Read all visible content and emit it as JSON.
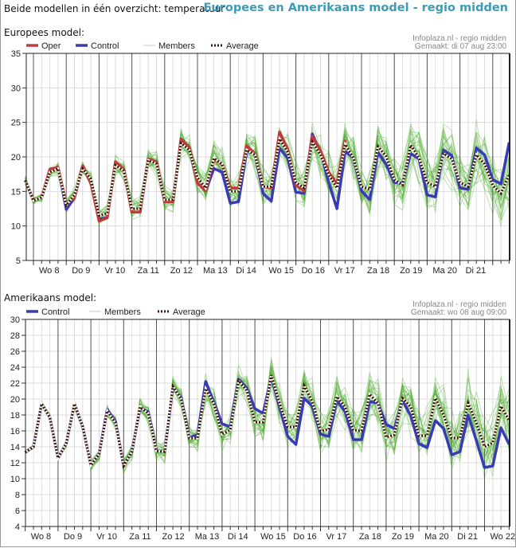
{
  "header": {
    "left_title": "Beide modellen in één overzicht: temperatuur",
    "right_title": "Europees en Amerikaans model - regio midden"
  },
  "chart_data": [
    {
      "type": "line",
      "title": "Europees model:",
      "source": "Infoplaza.nl - regio midden",
      "made": "Gemaakt: di 07 aug 23:00",
      "ylim": [
        5,
        35
      ],
      "yticks": [
        5,
        10,
        15,
        20,
        25,
        30,
        35
      ],
      "step_hours": 6,
      "day_labels": [
        "Wo 8",
        "Do 9",
        "Vr 10",
        "Za 11",
        "Zo 12",
        "Ma 13",
        "Di 14",
        "Wo 15",
        "Do 16",
        "Vr 17",
        "Za 18",
        "Zo 19",
        "Ma 20",
        "Di 21"
      ],
      "legend": [
        "Oper",
        "Control",
        "Members",
        "Average"
      ],
      "series": [
        {
          "name": "Oper",
          "color": "#c43a3a",
          "values": [
            16.6,
            13.7,
            14.1,
            18.2,
            18.5,
            13.2,
            14.1,
            18.7,
            16.2,
            10.7,
            11.2,
            19.3,
            18.2,
            12,
            12,
            19.7,
            19.3,
            13.5,
            13.5,
            22.6,
            21.4,
            16.2,
            15.1,
            19.7,
            18.9,
            15.5,
            15.5,
            21.6,
            20.5,
            15.7,
            15.5,
            23.6,
            21.1,
            15.9,
            15.1,
            23,
            20.9,
            17.8,
            16.1,
            22.5
          ]
        },
        {
          "name": "Control",
          "color": "#3a3ab4",
          "values": [
            16.6,
            13.7,
            14.1,
            18.2,
            18.5,
            12.4,
            14.1,
            18.7,
            16.2,
            11,
            11.2,
            19.3,
            18.2,
            12,
            12,
            19.7,
            19.3,
            13.5,
            13.5,
            22.6,
            21.4,
            16.2,
            15.1,
            18.3,
            17.8,
            13.3,
            13.5,
            20.8,
            20.5,
            14.7,
            13.6,
            21.3,
            19.8,
            14.9,
            14.7,
            23.3,
            20.7,
            16.3,
            12.5,
            20.8,
            19.9,
            15.1,
            13.8,
            20.7,
            18.9,
            16.3,
            16.2,
            20.5,
            19.7,
            14.5,
            14.2,
            21,
            20.2,
            15.5,
            15.3,
            21.3,
            20.3,
            16.7,
            16.1,
            22.1
          ]
        },
        {
          "name": "Average",
          "color": "#3d1500",
          "values": [
            16.6,
            13.7,
            14.1,
            17.8,
            18.3,
            13,
            14.5,
            18.3,
            16.8,
            11.5,
            11.8,
            18.8,
            18,
            12.5,
            12.5,
            19.5,
            19,
            13.8,
            13.8,
            22,
            21,
            17,
            15.5,
            19.8,
            19,
            15,
            15,
            21,
            20.3,
            15.7,
            15.7,
            22.6,
            20.7,
            16.3,
            15.5,
            22.2,
            20.3,
            17.4,
            15.5,
            21.8,
            19.9,
            15.7,
            15.3,
            21.5,
            20.1,
            16.7,
            15.9,
            21.7,
            19.9,
            16.3,
            15.7,
            20.5,
            19.7,
            16.3,
            15.7,
            20.3,
            19,
            15.9,
            14.7,
            17.4
          ]
        }
      ],
      "members": {
        "color": "#4aa82a",
        "spread_start": 0.6,
        "spread_end": 4.2
      }
    },
    {
      "type": "line",
      "title": "Amerikaans model:",
      "source": "Infoplaza.nl - regio midden",
      "made": "Gemaakt: wo 08 aug 09:00",
      "ylim": [
        4,
        30
      ],
      "yticks": [
        4,
        6,
        8,
        10,
        12,
        14,
        16,
        18,
        20,
        22,
        24,
        26,
        28,
        30
      ],
      "step_hours": 6,
      "day_labels": [
        "Wo 8",
        "Do 9",
        "Vr 10",
        "Za 11",
        "Zo 12",
        "Ma 13",
        "Di 14",
        "Wo 15",
        "Do 16",
        "Vr 17",
        "Za 18",
        "Zo 19",
        "Ma 20",
        "Di 21",
        "Wo 22"
      ],
      "legend": [
        "Control",
        "Members",
        "Average"
      ],
      "series": [
        {
          "name": "Control",
          "color": "#3a3ab4",
          "values": [
            13.3,
            14,
            19.4,
            17.7,
            12.6,
            14.4,
            19.4,
            16.6,
            11.7,
            13.1,
            18.7,
            17.2,
            11.6,
            13.4,
            18.9,
            18.4,
            13.5,
            13.4,
            21.4,
            20.2,
            15.2,
            15.5,
            22.2,
            19.6,
            16.9,
            16.5,
            22.5,
            21.4,
            18.8,
            18.2,
            22.8,
            19,
            15.3,
            14.3,
            20.1,
            19.1,
            15.6,
            15.3,
            19.8,
            18.4,
            14.9,
            14.9,
            19.7,
            19.5,
            16.8,
            16.3,
            19.8,
            17.9,
            14.4,
            13.9,
            17.3,
            16.3,
            13,
            13.4,
            18,
            14.8,
            11.4,
            11.6,
            16.4,
            14.3
          ]
        },
        {
          "name": "Average",
          "color": "#3d1500",
          "values": [
            13.3,
            14,
            19.4,
            17.7,
            12.6,
            14.4,
            19.4,
            16.6,
            11.7,
            13.1,
            18.5,
            17,
            11.6,
            13.4,
            19,
            18.2,
            13.5,
            13.4,
            21.6,
            20,
            15.1,
            15.1,
            21.3,
            19.4,
            15.6,
            16.1,
            22.3,
            21.1,
            17.1,
            17.1,
            23,
            19.5,
            16.5,
            16.5,
            21.7,
            19.7,
            16,
            16.2,
            20.3,
            19,
            16.1,
            16,
            20.6,
            19.5,
            15.2,
            15.5,
            20.1,
            19,
            15.4,
            15.4,
            20.1,
            18,
            15.1,
            15.1,
            19.5,
            17,
            14,
            14.5,
            19.1,
            17.3
          ]
        }
      ],
      "members": {
        "color": "#4aa82a",
        "spread_start": 0.2,
        "spread_end": 3.8
      }
    }
  ]
}
